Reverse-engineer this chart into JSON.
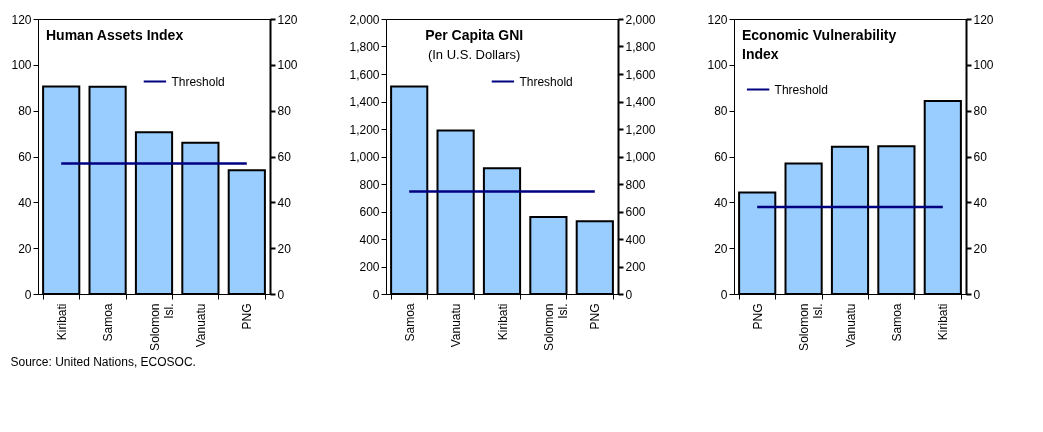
{
  "chart_data": [
    {
      "type": "bar",
      "title": "Human Assets Index",
      "categories": [
        "Kiribati",
        "Samoa",
        "Solomon Isl.",
        "Vanuatu",
        "PNG"
      ],
      "values": [
        90.5,
        90.4,
        70.6,
        66,
        54
      ],
      "color": "#99ccff",
      "ylim": [
        0,
        120
      ],
      "yticks": [
        0,
        20,
        40,
        60,
        80,
        100,
        120
      ],
      "y2lim": [
        0,
        120
      ],
      "y2ticks": [
        0,
        20,
        40,
        60,
        80,
        100,
        120
      ],
      "ref_lines": [
        {
          "axis": "y",
          "value": 57,
          "label": "Threshold",
          "color": "#000080"
        }
      ],
      "legend": "top right",
      "grid": false,
      "annotations": [
        "Source: United Nations, ECOSOC."
      ]
    },
    {
      "type": "bar",
      "title": "Per Capita GNI",
      "subtitle": "(In U.S. Dollars)",
      "categories": [
        "Samoa",
        "Vanuatu",
        "Kiribati",
        "Solomon Isl.",
        "PNG"
      ],
      "values": [
        1510,
        1190,
        915,
        560,
        530
      ],
      "color": "#99ccff",
      "ylim": [
        0,
        2000
      ],
      "yticks": [
        0,
        200,
        400,
        600,
        800,
        {
          "value": 1000,
          "label": "1,000"
        },
        {
          "value": 1200,
          "label": "1,200"
        },
        {
          "value": 1400,
          "label": "1,400"
        },
        {
          "value": 1600,
          "label": "1,600"
        },
        {
          "value": 1800,
          "label": "1,800"
        },
        {
          "value": 2000,
          "label": "2,000"
        }
      ],
      "y2lim": [
        0,
        2000
      ],
      "y2ticks": [
        0,
        200,
        400,
        600,
        800,
        {
          "value": 1000,
          "label": "1,000"
        },
        {
          "value": 1200,
          "label": "1,200"
        },
        {
          "value": 1400,
          "label": "1,400"
        },
        {
          "value": 1600,
          "label": "1,600"
        },
        {
          "value": 1800,
          "label": "1,800"
        },
        {
          "value": 2000,
          "label": "2,000"
        }
      ],
      "ref_lines": [
        {
          "axis": "y",
          "value": 745,
          "label": "Threshold",
          "color": "#000080"
        }
      ],
      "legend": "top right",
      "grid": false
    },
    {
      "type": "bar",
      "title": "Economic Vulnerability Index",
      "categories": [
        "PNG",
        "Solomon Isl.",
        "Vanuatu",
        "Samoa",
        "Kiribati"
      ],
      "values": [
        44.3,
        57,
        64.3,
        64.5,
        84.2
      ],
      "color": "#99ccff",
      "ylim": [
        0,
        120
      ],
      "yticks": [
        0,
        20,
        40,
        60,
        80,
        100,
        120
      ],
      "y2lim": [
        0,
        120
      ],
      "y2ticks": [
        0,
        20,
        40,
        60,
        80,
        100,
        120
      ],
      "ref_lines": [
        {
          "axis": "y",
          "value": 38,
          "label": "Threshold",
          "color": "#000080"
        }
      ],
      "legend": "top left",
      "grid": false
    }
  ]
}
